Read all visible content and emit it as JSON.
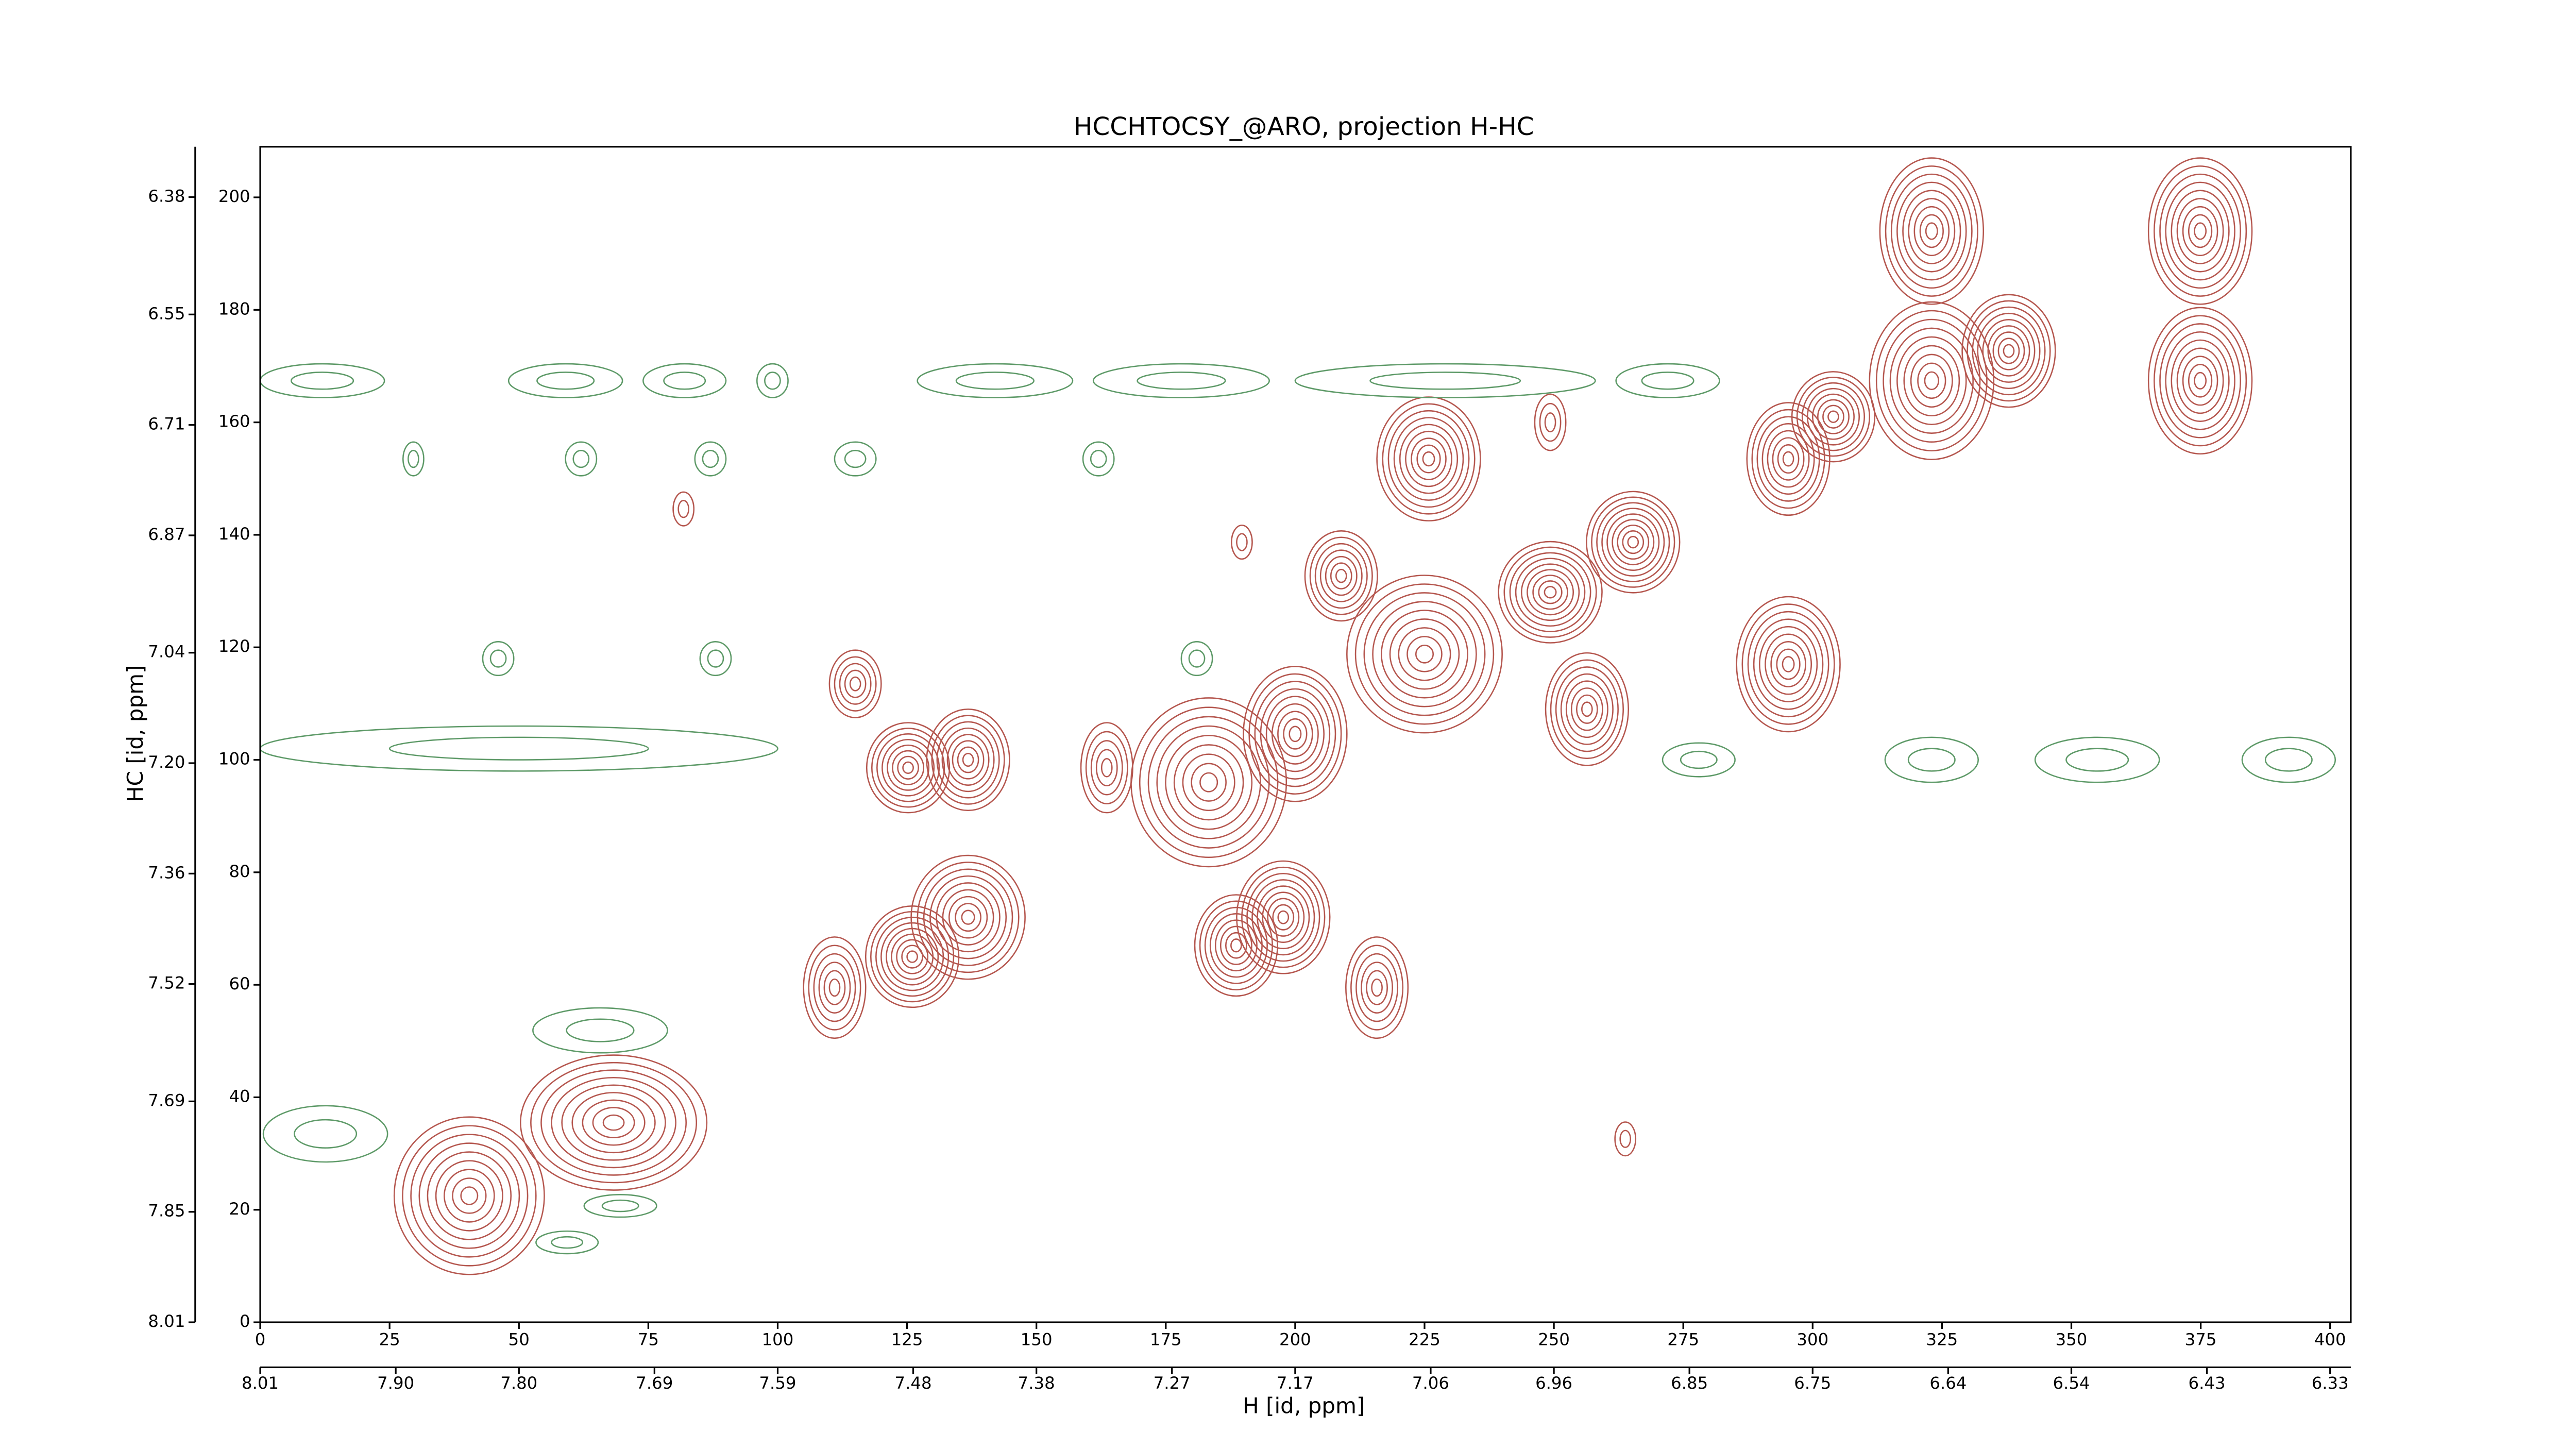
{
  "chart_data": {
    "type": "contour",
    "title": "HCCHTOCSY_@ARO, projection H-HC",
    "xlabel": "H [id, ppm]",
    "ylabel": "HC [id, ppm]",
    "xlim": [
      0,
      404
    ],
    "ylim": [
      0,
      209
    ],
    "xticks": [
      0,
      25,
      50,
      75,
      100,
      125,
      150,
      175,
      200,
      225,
      250,
      275,
      300,
      325,
      350,
      375,
      400
    ],
    "yticks": [
      0,
      20,
      40,
      60,
      80,
      100,
      120,
      140,
      160,
      180,
      200
    ],
    "x2lim": [
      8.01,
      6.3132
    ],
    "y2lim": [
      8.01,
      6.307
    ],
    "x2ticks": [
      8.01,
      {
        "value": 7.9,
        "label": "7.90"
      },
      {
        "value": 7.8,
        "label": "7.80"
      },
      7.69,
      7.59,
      7.48,
      7.38,
      7.27,
      7.17,
      7.06,
      6.96,
      6.85,
      6.75,
      6.64,
      6.54,
      6.43,
      6.33
    ],
    "y2ticks": [
      8.01,
      7.85,
      7.69,
      7.52,
      7.36,
      {
        "value": 7.2,
        "label": "7.20"
      },
      7.04,
      6.87,
      6.71,
      6.55,
      6.38
    ],
    "series": [
      {
        "color": "#b5574f",
        "x": [
          40.4,
          68.3,
          111,
          126,
          136.8,
          125.2,
          136.8,
          115,
          163.6,
          183.3,
          200,
          188.6,
          197.7,
          215.8,
          208.9,
          225,
          225.8,
          249.3,
          249.3,
          256.4,
          265.3,
          295.3,
          304,
          295.3,
          323,
          323,
          337.9,
          374.9,
          374.9,
          81.8,
          189.7,
          263.8
        ],
        "y": [
          22.5,
          35.5,
          59.5,
          65,
          72,
          98.6,
          100,
          113.5,
          98.6,
          96,
          104.6,
          67,
          72,
          59.5,
          132.7,
          118.8,
          153.5,
          160,
          129.8,
          109,
          138.7,
          153.5,
          161,
          117,
          194,
          167.4,
          172.7,
          194,
          167.4,
          144.6,
          138.7,
          32.6
        ],
        "width": [
          14.5,
          18,
          6,
          9,
          11,
          8,
          8,
          5,
          5,
          15,
          10,
          8,
          9,
          6,
          7,
          15,
          10,
          3,
          10,
          8,
          9,
          8,
          8,
          10,
          10,
          12,
          9,
          10,
          10,
          2,
          2,
          2
        ],
        "height": [
          14,
          12,
          9,
          9,
          11,
          8,
          9,
          6,
          8,
          15,
          12,
          9,
          10,
          9,
          8,
          14,
          11,
          5,
          9,
          10,
          9,
          10,
          8,
          12,
          13,
          14,
          10,
          13,
          13,
          3,
          3,
          3
        ]
      },
      {
        "color": "#5e9a68",
        "x": [
          12,
          59,
          82,
          99,
          142,
          178,
          229,
          272,
          50,
          278,
          323,
          355,
          392,
          29.6,
          62,
          87,
          115,
          162,
          46,
          88,
          181,
          65.7,
          59.3,
          69.6,
          12.6
        ],
        "y": [
          167.4,
          167.4,
          167.4,
          167.4,
          167.4,
          167.4,
          167.4,
          167.4,
          102,
          100,
          100,
          100,
          100,
          153.5,
          153.5,
          153.5,
          153.5,
          153.5,
          118,
          118,
          118,
          51.9,
          14.2,
          20.7,
          33.5
        ],
        "width": [
          12,
          11,
          8,
          3,
          15,
          17,
          29,
          10,
          50,
          7,
          9,
          12,
          9,
          2,
          3,
          3,
          4,
          3,
          3,
          3,
          3,
          13,
          6,
          7,
          12
        ],
        "height": [
          3,
          3,
          3,
          3,
          3,
          3,
          3,
          3,
          4,
          3,
          4,
          4,
          4,
          3,
          3,
          3,
          3,
          3,
          3,
          3,
          3,
          4,
          2,
          2,
          5
        ]
      }
    ]
  }
}
